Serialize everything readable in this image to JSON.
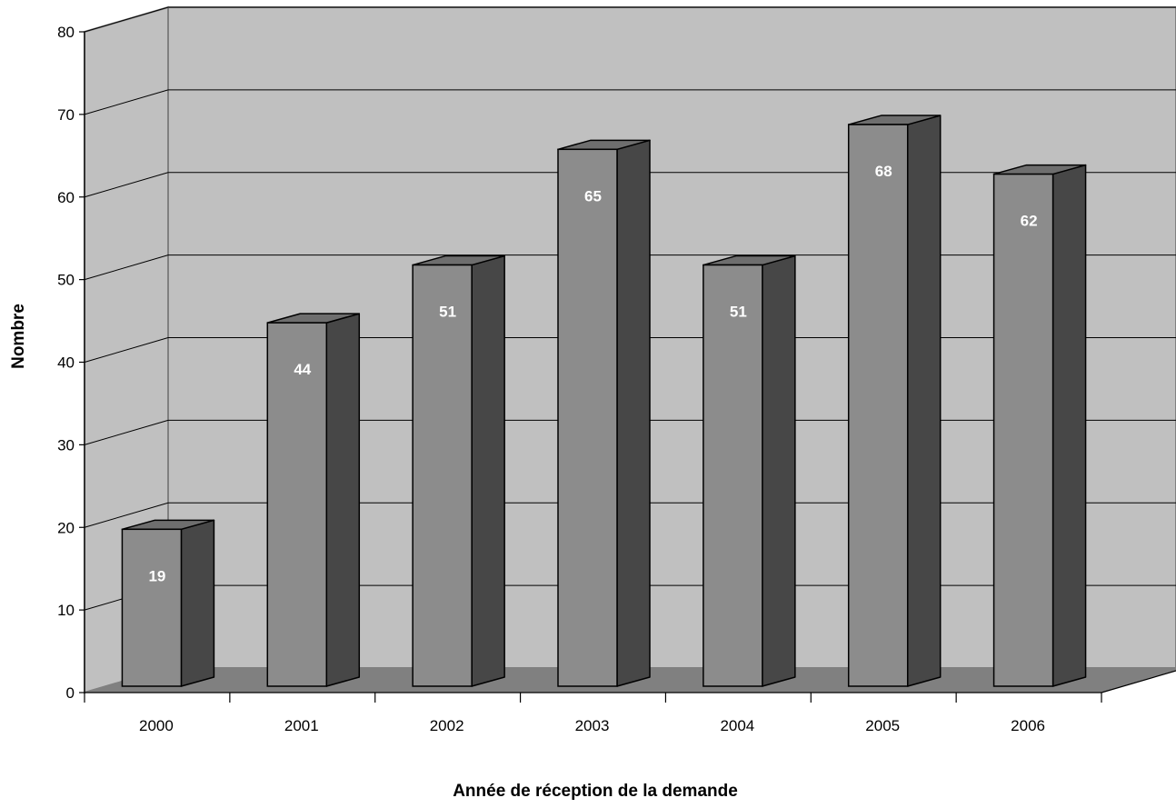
{
  "chart_data": {
    "type": "bar",
    "title": "",
    "xlabel": "Année de réception de la demande",
    "ylabel": "Nombre",
    "categories": [
      "2000",
      "2001",
      "2002",
      "2003",
      "2004",
      "2005",
      "2006"
    ],
    "values": [
      19,
      44,
      51,
      65,
      51,
      68,
      62
    ],
    "y_ticks": [
      "0",
      "10",
      "20",
      "30",
      "40",
      "50",
      "60",
      "70",
      "80"
    ],
    "ylim": [
      0,
      80
    ],
    "grid": true,
    "style": "3d",
    "legend": "none",
    "colors": {
      "bar_front": "#8c8c8c",
      "bar_side": "#474747",
      "bar_top": "#6e6e6e",
      "back_wall": "#c0c0c0",
      "side_wall": "#c0c0c0",
      "floor": "#808080",
      "data_label": "#ffffff"
    }
  }
}
